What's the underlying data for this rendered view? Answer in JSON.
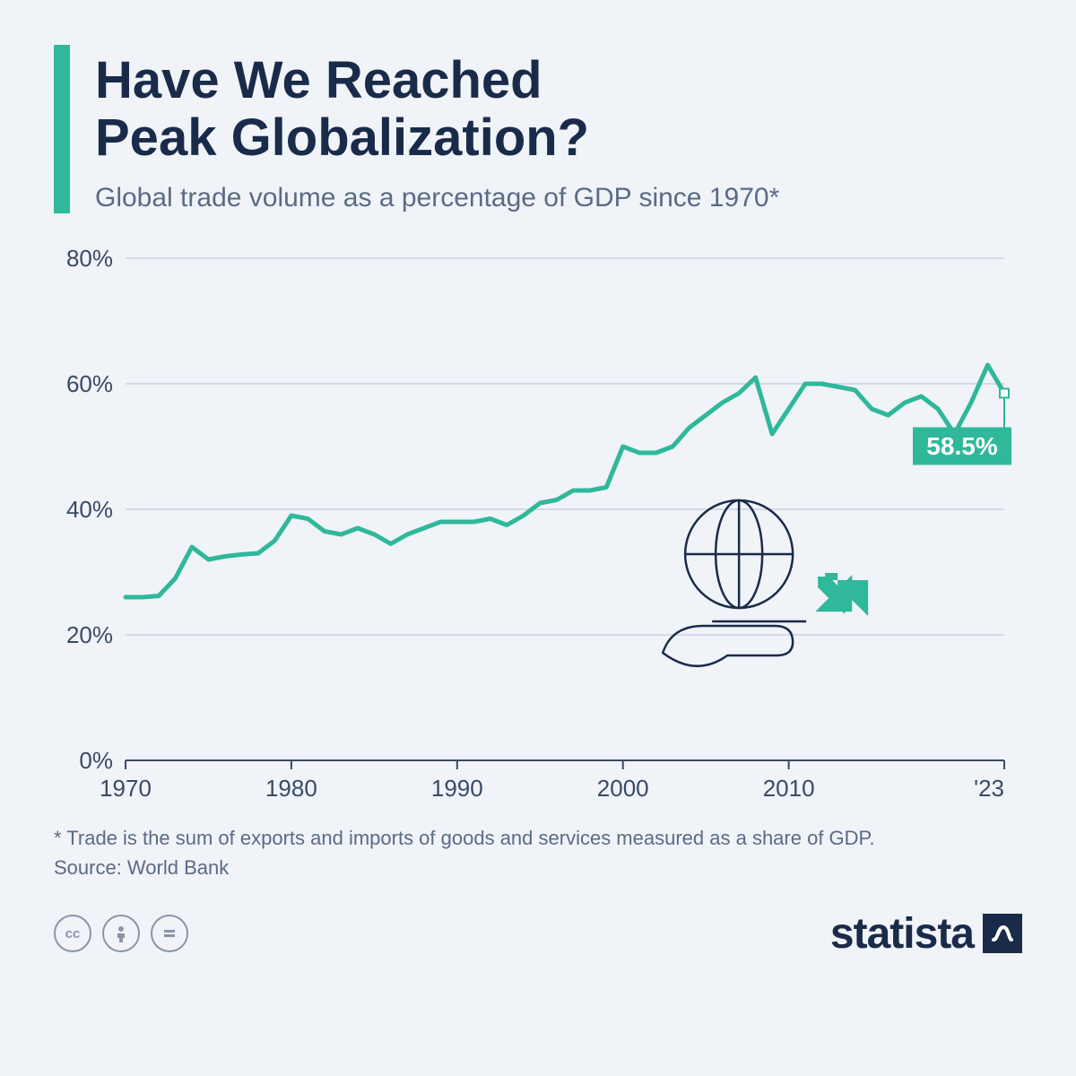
{
  "header": {
    "title_line1": "Have We Reached",
    "title_line2": "Peak Globalization?",
    "subtitle": "Global trade volume as a percentage of GDP since 1970*",
    "accent_color": "#2fb89a"
  },
  "chart": {
    "type": "line",
    "background_color": "#f0f3f8",
    "grid_color": "#b8c0cc",
    "axis_color": "#3a4a65",
    "line_color": "#2fb89a",
    "line_width": 5,
    "xlim": [
      1970,
      2023
    ],
    "ylim": [
      0,
      80
    ],
    "ytick_step": 20,
    "yticks": [
      "0%",
      "20%",
      "40%",
      "60%",
      "80%"
    ],
    "xticks": [
      {
        "year": 1970,
        "label": "1970"
      },
      {
        "year": 1980,
        "label": "1980"
      },
      {
        "year": 1990,
        "label": "1990"
      },
      {
        "year": 2000,
        "label": "2000"
      },
      {
        "year": 2010,
        "label": "2010"
      },
      {
        "year": 2023,
        "label": "'23"
      }
    ],
    "tick_fontsize": 26,
    "series": {
      "years": [
        1970,
        1971,
        1972,
        1973,
        1974,
        1975,
        1976,
        1977,
        1978,
        1979,
        1980,
        1981,
        1982,
        1983,
        1984,
        1985,
        1986,
        1987,
        1988,
        1989,
        1990,
        1991,
        1992,
        1993,
        1994,
        1995,
        1996,
        1997,
        1998,
        1999,
        2000,
        2001,
        2002,
        2003,
        2004,
        2005,
        2006,
        2007,
        2008,
        2009,
        2010,
        2011,
        2012,
        2013,
        2014,
        2015,
        2016,
        2017,
        2018,
        2019,
        2020,
        2021,
        2022,
        2023
      ],
      "values": [
        26,
        26,
        26.2,
        29,
        34,
        32,
        32.5,
        32.8,
        33,
        35,
        39,
        38.5,
        36.5,
        36,
        37,
        36,
        34.5,
        36,
        37,
        38,
        38,
        38,
        38.5,
        37.5,
        39,
        41,
        41.5,
        43,
        43,
        43.5,
        50,
        49,
        49,
        50,
        53,
        55,
        57,
        58.5,
        61,
        52,
        56,
        60,
        60,
        59.5,
        59,
        56,
        55,
        57,
        58,
        56,
        52,
        57,
        63,
        58.5
      ]
    },
    "callout": {
      "label": "58.5%",
      "year": 2023,
      "value": 58.5,
      "box_color": "#2fb89a",
      "text_color": "#ffffff",
      "fontsize": 28
    }
  },
  "footnote": {
    "line1": "* Trade is the sum of exports and imports of goods and services measured as a share of GDP.",
    "line2": "Source: World Bank"
  },
  "footer": {
    "cc_icons": [
      "cc",
      "by",
      "nd"
    ],
    "brand": "statista"
  }
}
